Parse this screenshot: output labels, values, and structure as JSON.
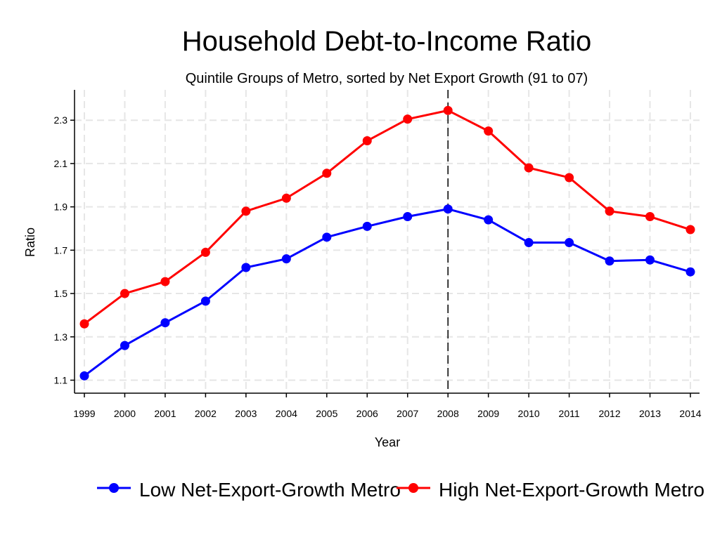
{
  "chart_data": {
    "type": "line",
    "title": "Household Debt-to-Income Ratio",
    "subtitle": "Quintile Groups of Metro, sorted by Net Export Growth (91 to 07)",
    "xlabel": "Year",
    "ylabel": "Ratio",
    "x": [
      "1999",
      "2000",
      "2001",
      "2002",
      "2003",
      "2004",
      "2005",
      "2006",
      "2007",
      "2008",
      "2009",
      "2010",
      "2011",
      "2012",
      "2013",
      "2014"
    ],
    "ylim": [
      1.04,
      2.44
    ],
    "yticks": [
      1.1,
      1.3,
      1.5,
      1.7,
      1.9,
      2.1,
      2.3
    ],
    "ytick_labels": [
      "1.1",
      "1.3",
      "1.5",
      "1.7",
      "1.9",
      "2.1",
      "2.3"
    ],
    "grid": true,
    "reference_line": {
      "x": "2008",
      "style": "dashed"
    },
    "legend_position": "bottom",
    "series": [
      {
        "name": "Low Net-Export-Growth Metro",
        "color": "#0000ff",
        "values": [
          1.12,
          1.26,
          1.365,
          1.465,
          1.62,
          1.66,
          1.76,
          1.81,
          1.855,
          1.89,
          1.84,
          1.735,
          1.735,
          1.65,
          1.655,
          1.6
        ]
      },
      {
        "name": "High Net-Export-Growth Metro",
        "color": "#ff0000",
        "values": [
          1.36,
          1.5,
          1.555,
          1.69,
          1.88,
          1.94,
          2.055,
          2.205,
          2.305,
          2.345,
          2.25,
          2.08,
          2.035,
          1.88,
          1.855,
          1.795
        ]
      }
    ]
  }
}
